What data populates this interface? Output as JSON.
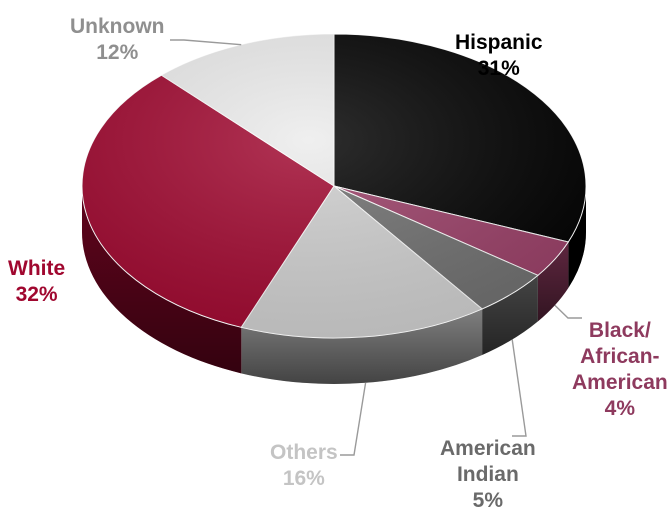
{
  "chart_data": {
    "type": "pie",
    "title": "",
    "slices": [
      {
        "label": "Hispanic",
        "value": 31,
        "value_label": "31%",
        "color": "#000000",
        "label_color": "#000000"
      },
      {
        "label": "Black/ African-American",
        "label_lines": [
          "Black/",
          "African-",
          "American"
        ],
        "value": 4,
        "value_label": "4%",
        "color": "#9a3f67",
        "label_color": "#8e3a5e"
      },
      {
        "label": "American Indian",
        "label_lines": [
          "American",
          "Indian"
        ],
        "value": 5,
        "value_label": "5%",
        "color": "#6f6f6f",
        "label_color": "#6a6a6a"
      },
      {
        "label": "Others",
        "value": 16,
        "value_label": "16%",
        "color": "#cfcfcf",
        "label_color": "#c4c4c4"
      },
      {
        "label": "White",
        "value": 32,
        "value_label": "32%",
        "color": "#a0072f",
        "label_color": "#a0072f"
      },
      {
        "label": "Unknown",
        "value": 12,
        "value_label": "12%",
        "color": "#ececec",
        "label_color": "#8f8f8f"
      }
    ],
    "legend": "none",
    "style": "3d-tilted"
  }
}
